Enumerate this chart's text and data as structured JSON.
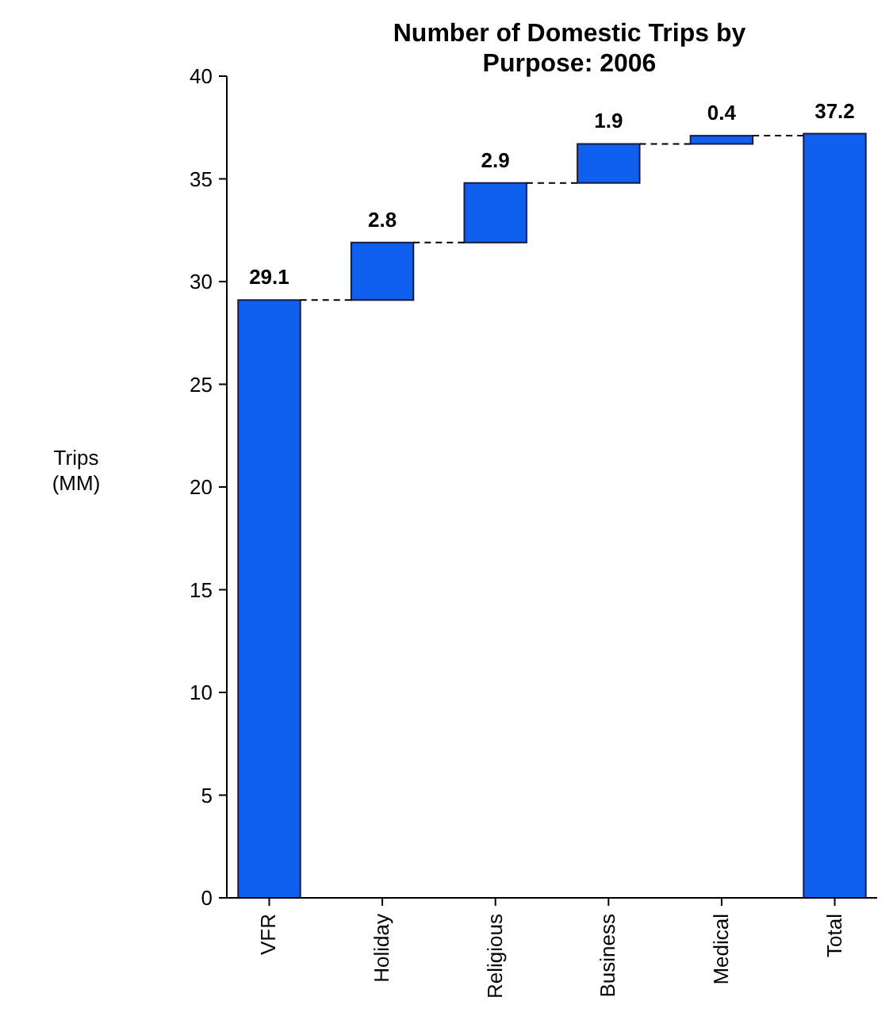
{
  "chart_data": {
    "type": "bar",
    "title": "Number of Domestic Trips by Purpose: 2006",
    "ylabel": "Trips (MM)",
    "categories": [
      "VFR",
      "Holiday",
      "Religious",
      "Business",
      "Medical",
      "Total"
    ],
    "values": [
      29.1,
      2.8,
      2.9,
      1.9,
      0.4,
      37.2
    ],
    "base": [
      0,
      29.1,
      31.9,
      34.8,
      36.7,
      0
    ],
    "color": "#1060f0",
    "ylim": [
      0,
      40
    ],
    "yticks": [
      0,
      5,
      10,
      15,
      20,
      25,
      30,
      35,
      40
    ],
    "data_labels": true,
    "grid": false
  }
}
